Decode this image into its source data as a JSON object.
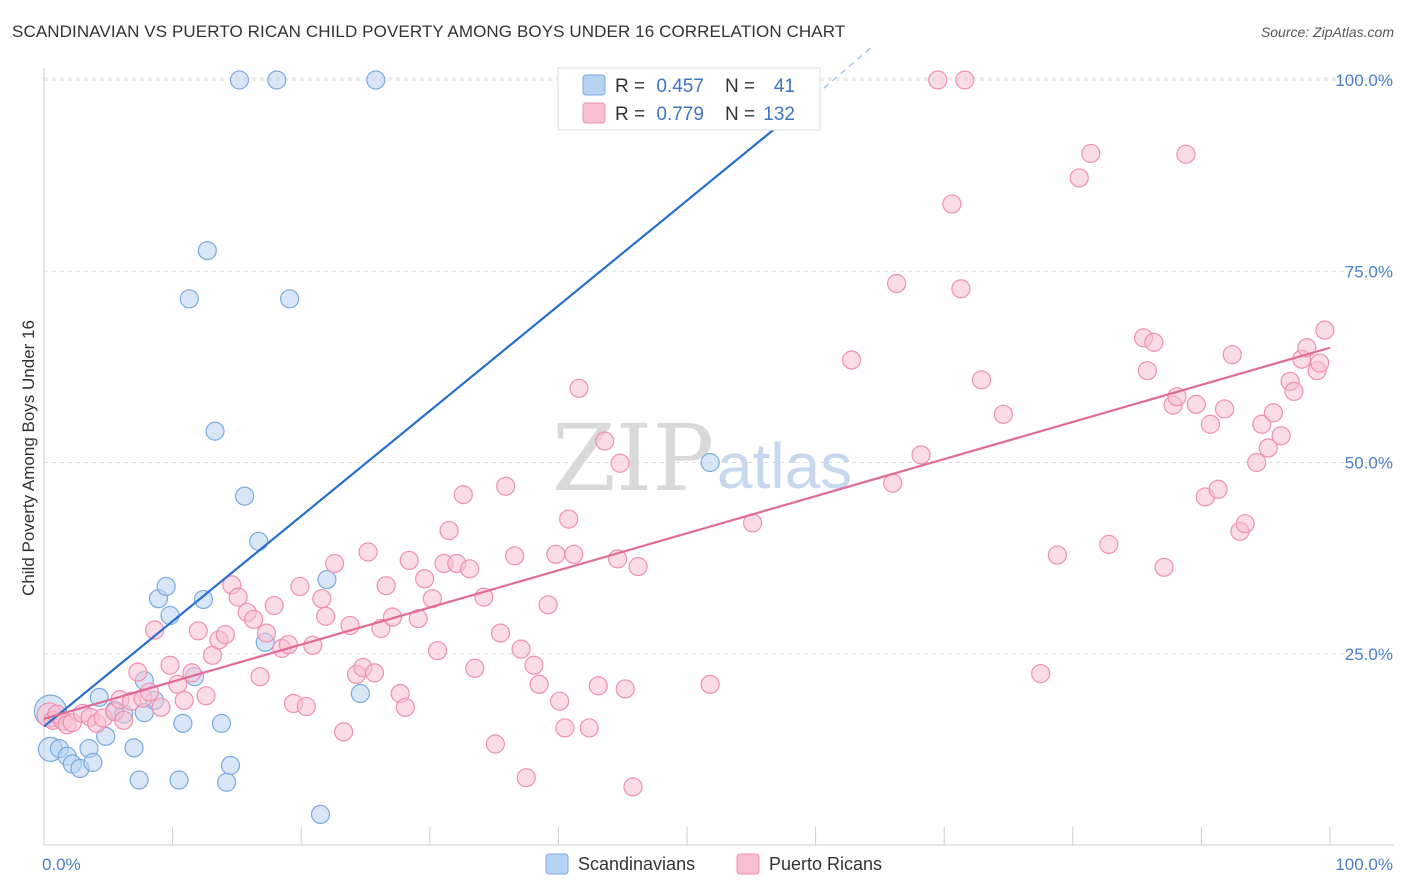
{
  "title": "SCANDINAVIAN VS PUERTO RICAN CHILD POVERTY AMONG BOYS UNDER 16 CORRELATION CHART",
  "source": "Source: ZipAtlas.com",
  "watermark": {
    "zip": "ZIP",
    "atlas": "atlas"
  },
  "colors": {
    "scandinavian": "#7aaae0",
    "scandinavian_fill": "#b8d2f2",
    "scandinavian_line": "#2a6fcf",
    "puerto_rican": "#f08fb0",
    "puerto_rican_fill": "#f6bfd2",
    "puerto_rican_line": "#e06b98",
    "tick_label": "#4a7fc9",
    "grid": "#dddddd"
  },
  "legend": {
    "rows": [
      {
        "r_label": "R = ",
        "r_value": "0.457",
        "n_label": "N = ",
        "n_value": "41"
      },
      {
        "r_label": "R = ",
        "r_value": "0.779",
        "n_label": "N = ",
        "n_value": "132"
      }
    ]
  },
  "chart_data": {
    "type": "scatter",
    "title": "SCANDINAVIAN VS PUERTO RICAN CHILD POVERTY AMONG BOYS UNDER 16 CORRELATION CHART",
    "xlabel": "",
    "ylabel": "Child Poverty Among Boys Under 16",
    "xlim": [
      0,
      100
    ],
    "ylim": [
      0,
      105
    ],
    "x_tick_labels": [
      "0.0%",
      "100.0%"
    ],
    "y_ticks": [
      25,
      50,
      75,
      100
    ],
    "y_tick_labels": [
      "25.0%",
      "50.0%",
      "75.0%",
      "100.0%"
    ],
    "grid": true,
    "legend_position": "top-center",
    "series": [
      {
        "name": "Scandinavians",
        "r": 0.457,
        "n": 41,
        "trend": {
          "x0": 0,
          "y0": 15.5,
          "x1": 60,
          "y1": 98,
          "dash_x1": 64.5,
          "dash_y1": 104.5
        },
        "points": [
          [
            0.5,
            17.5,
            "L"
          ],
          [
            0.5,
            12.5,
            "M"
          ],
          [
            1.2,
            12.6
          ],
          [
            1.8,
            11.6
          ],
          [
            2.2,
            10.6
          ],
          [
            2.8,
            10.0
          ],
          [
            3.5,
            12.6
          ],
          [
            3.8,
            10.8
          ],
          [
            4.3,
            19.3
          ],
          [
            4.8,
            14.2
          ],
          [
            5.5,
            17.6
          ],
          [
            6.2,
            17.1
          ],
          [
            7.0,
            12.7
          ],
          [
            7.4,
            8.5
          ],
          [
            7.8,
            17.3
          ],
          [
            7.8,
            21.5
          ],
          [
            8.6,
            18.9
          ],
          [
            8.9,
            32.2
          ],
          [
            9.5,
            33.8
          ],
          [
            9.8,
            30.0
          ],
          [
            10.5,
            8.5
          ],
          [
            10.8,
            15.9
          ],
          [
            11.3,
            71.4
          ],
          [
            11.7,
            22.0
          ],
          [
            12.4,
            32.1
          ],
          [
            12.7,
            77.7
          ],
          [
            13.3,
            54.1
          ],
          [
            13.8,
            15.9
          ],
          [
            14.2,
            8.2
          ],
          [
            14.5,
            10.4
          ],
          [
            15.6,
            45.6
          ],
          [
            16.7,
            39.7
          ],
          [
            17.2,
            26.5
          ],
          [
            19.1,
            71.4
          ],
          [
            21.5,
            4.0
          ],
          [
            22.0,
            34.7
          ],
          [
            24.6,
            19.8
          ],
          [
            15.2,
            100
          ],
          [
            18.1,
            100
          ],
          [
            25.8,
            100
          ],
          [
            51.8,
            50.0
          ]
        ]
      },
      {
        "name": "Puerto Ricans",
        "r": 0.779,
        "n": 132,
        "trend": {
          "x0": 0,
          "y0": 16.5,
          "x1": 100,
          "y1": 65.0
        },
        "points": [
          [
            0.4,
            17.0,
            "M"
          ],
          [
            0.7,
            16.3
          ],
          [
            1.0,
            17.1
          ],
          [
            1.5,
            16.2
          ],
          [
            1.8,
            15.7
          ],
          [
            2.2,
            16.0
          ],
          [
            3.0,
            17.2
          ],
          [
            3.6,
            16.7
          ],
          [
            4.1,
            15.9
          ],
          [
            4.6,
            16.6
          ],
          [
            5.5,
            17.4
          ],
          [
            5.9,
            19.0
          ],
          [
            6.2,
            16.3
          ],
          [
            6.8,
            18.8
          ],
          [
            7.3,
            22.6
          ],
          [
            7.7,
            19.2
          ],
          [
            8.2,
            20.0
          ],
          [
            8.6,
            28.1
          ],
          [
            9.1,
            18.0
          ],
          [
            9.8,
            23.5
          ],
          [
            10.4,
            21.0
          ],
          [
            10.9,
            18.9
          ],
          [
            11.5,
            22.5
          ],
          [
            12.0,
            28.0
          ],
          [
            12.6,
            19.5
          ],
          [
            13.1,
            24.8
          ],
          [
            13.6,
            26.8
          ],
          [
            14.1,
            27.5
          ],
          [
            14.6,
            34.0
          ],
          [
            15.1,
            32.4
          ],
          [
            15.8,
            30.4
          ],
          [
            16.3,
            29.5
          ],
          [
            16.8,
            22.0
          ],
          [
            17.3,
            27.7
          ],
          [
            17.9,
            31.3
          ],
          [
            18.5,
            25.7
          ],
          [
            19.0,
            26.2
          ],
          [
            19.4,
            18.5
          ],
          [
            19.9,
            33.8
          ],
          [
            20.4,
            18.1
          ],
          [
            20.9,
            26.1
          ],
          [
            21.6,
            32.2
          ],
          [
            21.9,
            29.9
          ],
          [
            22.6,
            36.8
          ],
          [
            23.3,
            14.8
          ],
          [
            23.8,
            28.7
          ],
          [
            24.3,
            22.3
          ],
          [
            24.8,
            23.2
          ],
          [
            25.2,
            38.3
          ],
          [
            25.7,
            22.5
          ],
          [
            26.2,
            28.3
          ],
          [
            26.6,
            33.9
          ],
          [
            27.1,
            29.8
          ],
          [
            27.7,
            19.8
          ],
          [
            28.1,
            18.0
          ],
          [
            28.4,
            37.2
          ],
          [
            29.1,
            29.6
          ],
          [
            29.6,
            34.8
          ],
          [
            30.2,
            32.2
          ],
          [
            30.6,
            25.4
          ],
          [
            31.1,
            36.8
          ],
          [
            31.5,
            41.1
          ],
          [
            32.1,
            36.8
          ],
          [
            32.6,
            45.8
          ],
          [
            33.1,
            36.1
          ],
          [
            33.5,
            23.1
          ],
          [
            34.2,
            32.4
          ],
          [
            35.1,
            13.2
          ],
          [
            35.5,
            27.7
          ],
          [
            35.9,
            46.9
          ],
          [
            36.6,
            37.8
          ],
          [
            37.1,
            25.6
          ],
          [
            37.5,
            8.8
          ],
          [
            38.1,
            23.5
          ],
          [
            38.5,
            21.0
          ],
          [
            39.2,
            31.4
          ],
          [
            39.8,
            38.0
          ],
          [
            40.1,
            18.8
          ],
          [
            40.5,
            15.3
          ],
          [
            40.8,
            42.6
          ],
          [
            41.2,
            38.0
          ],
          [
            41.6,
            59.7
          ],
          [
            42.4,
            15.3
          ],
          [
            43.1,
            20.8
          ],
          [
            43.6,
            52.8
          ],
          [
            44.6,
            37.4
          ],
          [
            44.8,
            49.9
          ],
          [
            45.2,
            20.4
          ],
          [
            45.8,
            7.6
          ],
          [
            46.2,
            36.4
          ],
          [
            51.8,
            21.0
          ],
          [
            55.1,
            42.1
          ],
          [
            62.8,
            63.4
          ],
          [
            66.0,
            47.3
          ],
          [
            66.3,
            73.4
          ],
          [
            68.2,
            51.0
          ],
          [
            70.6,
            83.8
          ],
          [
            71.3,
            72.7
          ],
          [
            72.9,
            60.8
          ],
          [
            74.6,
            56.3
          ],
          [
            77.5,
            22.4
          ],
          [
            78.8,
            37.9
          ],
          [
            80.5,
            87.2
          ],
          [
            81.4,
            90.4
          ],
          [
            82.8,
            39.3
          ],
          [
            85.5,
            66.3
          ],
          [
            85.8,
            62.0
          ],
          [
            86.3,
            65.7
          ],
          [
            87.1,
            36.3
          ],
          [
            87.8,
            57.5
          ],
          [
            88.1,
            58.6
          ],
          [
            88.8,
            90.3
          ],
          [
            89.6,
            57.6
          ],
          [
            90.3,
            45.5
          ],
          [
            90.7,
            55.0
          ],
          [
            91.3,
            46.5
          ],
          [
            91.8,
            57.0
          ],
          [
            92.4,
            64.1
          ],
          [
            93.0,
            41.0
          ],
          [
            93.4,
            42.0
          ],
          [
            94.3,
            50.0
          ],
          [
            94.7,
            55.0
          ],
          [
            95.2,
            51.9
          ],
          [
            95.6,
            56.5
          ],
          [
            96.2,
            53.5
          ],
          [
            96.9,
            60.6
          ],
          [
            97.2,
            59.3
          ],
          [
            97.8,
            63.5
          ],
          [
            98.2,
            65.0
          ],
          [
            99.0,
            62.0
          ],
          [
            99.2,
            63.0
          ],
          [
            99.6,
            67.3
          ],
          [
            71.6,
            100
          ],
          [
            69.5,
            100
          ]
        ]
      }
    ]
  },
  "bottom_legend": {
    "items": [
      "Scandinavians",
      "Puerto Ricans"
    ]
  }
}
